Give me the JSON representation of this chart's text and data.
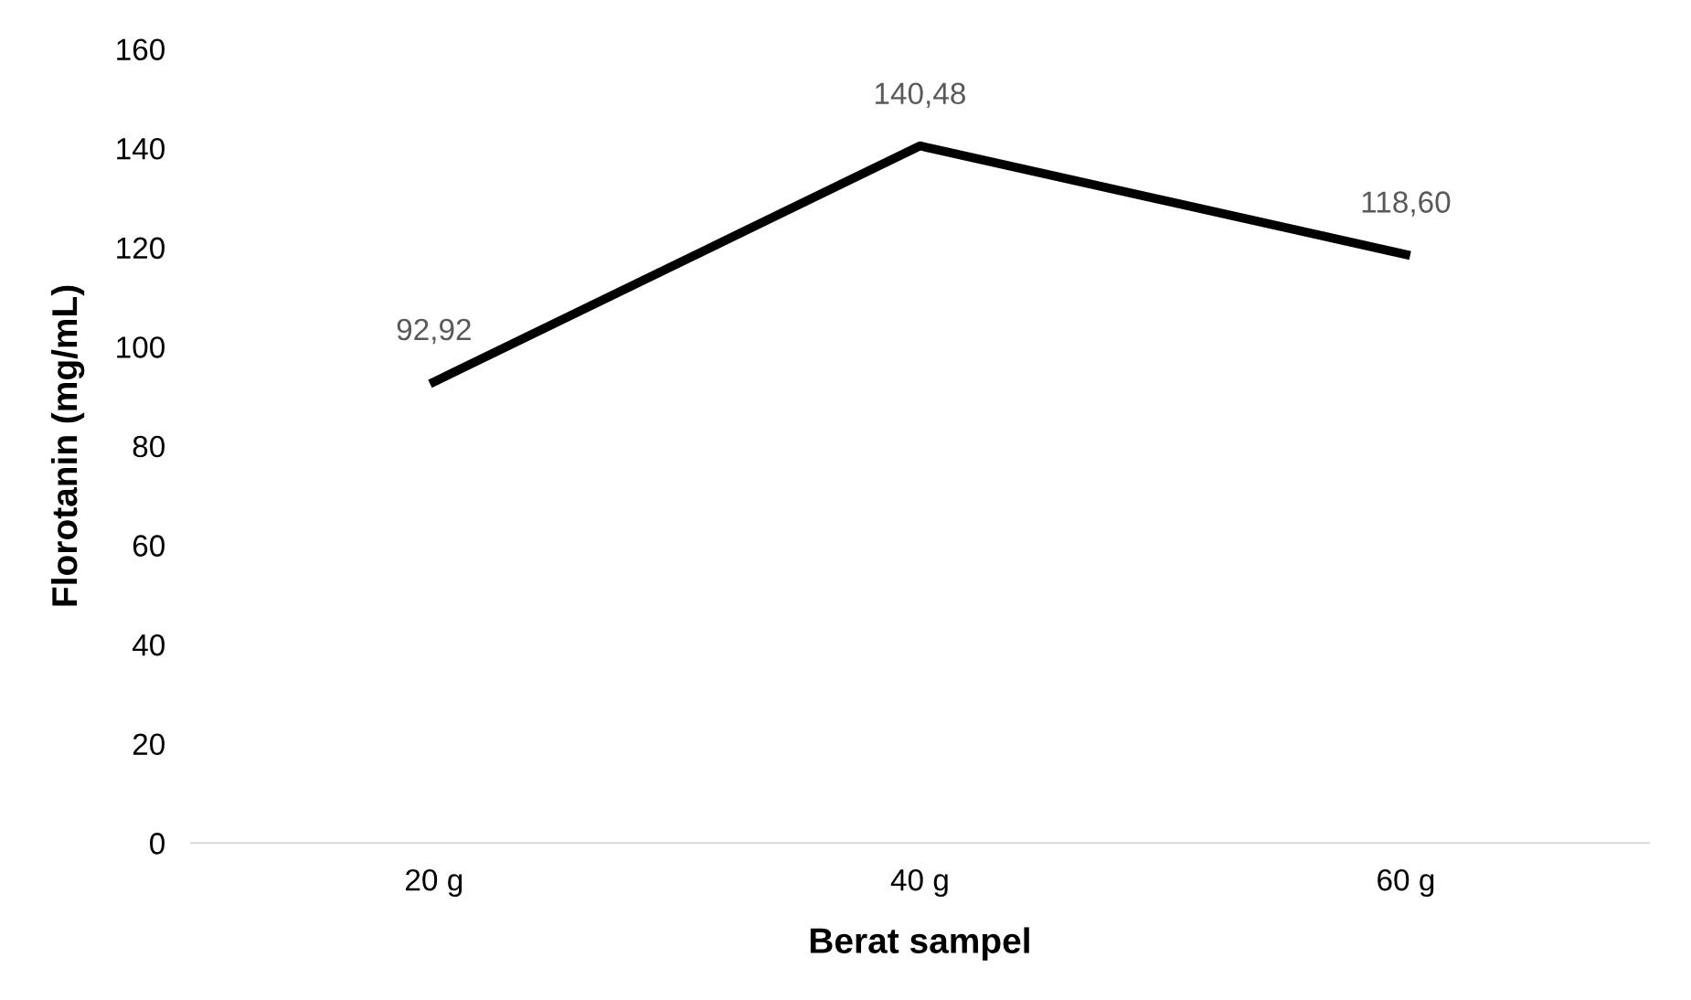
{
  "chart_data": {
    "type": "line",
    "xlabel": "Berat sampel",
    "ylabel": "Florotanin (mg/mL)",
    "categories": [
      "20 g",
      "40 g",
      "60 g"
    ],
    "series": [
      {
        "color": "#000000",
        "values": [
          92.92,
          140.48,
          118.6
        ],
        "value_labels": [
          "92,92",
          "140,48",
          "118,60"
        ]
      }
    ],
    "ylim": [
      0,
      160
    ],
    "yticks": [
      0,
      20,
      40,
      60,
      80,
      100,
      120,
      140,
      160
    ],
    "grid": false,
    "marker": "none",
    "line_style": "solid"
  }
}
